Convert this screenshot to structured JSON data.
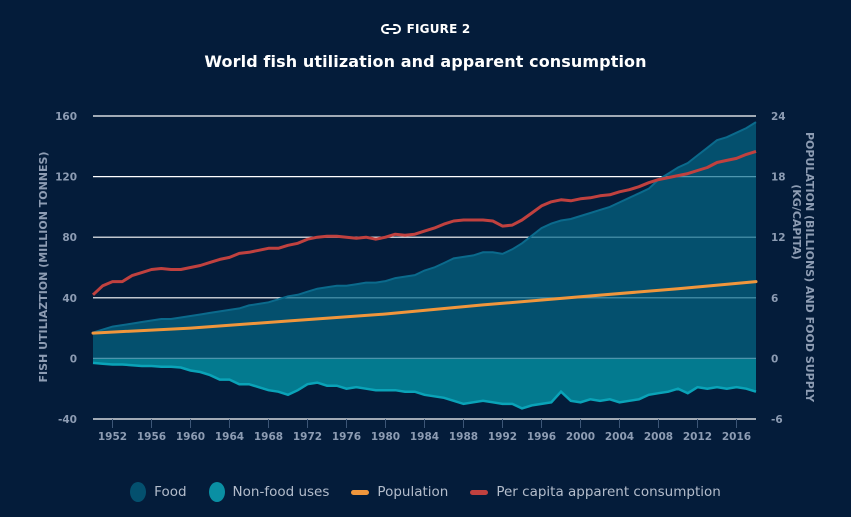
{
  "header": {
    "figure_icon": "link-icon",
    "figure_label": "FIGURE 2",
    "title": "World fish utilization and apparent consumption"
  },
  "colors": {
    "background": "#041c3a",
    "food": "#04506e",
    "food_edge": "#0b6a8c",
    "nonfood": "#037a8f",
    "nonfood_edge": "#0aa3b8",
    "population": "#f0963c",
    "per_capita": "#c0413f",
    "grid": "#ffffff",
    "grid_inside": "#4f97b0",
    "tick_text": "#8d9cb3"
  },
  "chart_data": {
    "type": "area",
    "title": "World fish utilization and apparent consumption",
    "xlabel": "",
    "ylabel": "FISH UTILIAZTION (MILLION TONNES)",
    "y2label_line1": "POPULATION (BILLIONS) AND FOOD SUPPLY",
    "y2label_line2": "(KG/CAPITA)",
    "xlim": [
      1950,
      2018
    ],
    "ylim": [
      -40,
      160
    ],
    "y2lim": [
      -6,
      24
    ],
    "yticks": [
      160,
      120,
      80,
      40,
      0,
      -40
    ],
    "y2ticks": [
      24,
      18,
      12,
      6,
      0,
      -6
    ],
    "xticks": [
      1952,
      1956,
      1960,
      1964,
      1968,
      1972,
      1976,
      1980,
      1984,
      1988,
      1992,
      1996,
      2000,
      2004,
      2008,
      2012,
      2016
    ],
    "grid": true,
    "legend_position": "bottom",
    "series": [
      {
        "name": "Food",
        "kind": "area",
        "axis": "left",
        "x": [
          1950,
          1951,
          1952,
          1953,
          1954,
          1955,
          1956,
          1957,
          1958,
          1959,
          1960,
          1961,
          1962,
          1963,
          1964,
          1965,
          1966,
          1967,
          1968,
          1969,
          1970,
          1971,
          1972,
          1973,
          1974,
          1975,
          1976,
          1977,
          1978,
          1979,
          1980,
          1981,
          1982,
          1983,
          1984,
          1985,
          1986,
          1987,
          1988,
          1989,
          1990,
          1991,
          1992,
          1993,
          1994,
          1995,
          1996,
          1997,
          1998,
          1999,
          2000,
          2001,
          2002,
          2003,
          2004,
          2005,
          2006,
          2007,
          2008,
          2009,
          2010,
          2011,
          2012,
          2013,
          2014,
          2015,
          2016,
          2017,
          2018
        ],
        "values": [
          17,
          19,
          21,
          22,
          23,
          24,
          25,
          26,
          26,
          27,
          28,
          29,
          30,
          31,
          32,
          33,
          35,
          36,
          37,
          39,
          41,
          42,
          44,
          46,
          47,
          48,
          48,
          49,
          50,
          50,
          51,
          53,
          54,
          55,
          58,
          60,
          63,
          66,
          67,
          68,
          70,
          70,
          69,
          72,
          76,
          81,
          86,
          89,
          91,
          92,
          94,
          96,
          98,
          100,
          103,
          106,
          109,
          112,
          118,
          122,
          126,
          129,
          134,
          139,
          144,
          146,
          149,
          152,
          156
        ]
      },
      {
        "name": "Non-food uses",
        "kind": "area",
        "axis": "left",
        "x": [
          1950,
          1951,
          1952,
          1953,
          1954,
          1955,
          1956,
          1957,
          1958,
          1959,
          1960,
          1961,
          1962,
          1963,
          1964,
          1965,
          1966,
          1967,
          1968,
          1969,
          1970,
          1971,
          1972,
          1973,
          1974,
          1975,
          1976,
          1977,
          1978,
          1979,
          1980,
          1981,
          1982,
          1983,
          1984,
          1985,
          1986,
          1987,
          1988,
          1989,
          1990,
          1991,
          1992,
          1993,
          1994,
          1995,
          1996,
          1997,
          1998,
          1999,
          2000,
          2001,
          2002,
          2003,
          2004,
          2005,
          2006,
          2007,
          2008,
          2009,
          2010,
          2011,
          2012,
          2013,
          2014,
          2015,
          2016,
          2017,
          2018
        ],
        "values": [
          -3,
          -3.5,
          -4,
          -4,
          -4.5,
          -5,
          -5,
          -5.5,
          -5.5,
          -6,
          -8,
          -9,
          -11,
          -14,
          -14,
          -17,
          -17,
          -19,
          -21,
          -22,
          -24,
          -21,
          -17,
          -16,
          -18,
          -18,
          -20,
          -19,
          -20,
          -21,
          -21,
          -21,
          -22,
          -22,
          -24,
          -25,
          -26,
          -28,
          -30,
          -29,
          -28,
          -29,
          -30,
          -30,
          -33,
          -31,
          -30,
          -29,
          -22,
          -28,
          -29,
          -27,
          -28,
          -27,
          -29,
          -28,
          -27,
          -24,
          -23,
          -22,
          -20,
          -23,
          -19,
          -20,
          -19,
          -20,
          -19,
          -20,
          -22
        ]
      },
      {
        "name": "Population",
        "kind": "line",
        "axis": "right",
        "unit": "billions",
        "x": [
          1950,
          1960,
          1970,
          1980,
          1990,
          2000,
          2010,
          2018
        ],
        "values": [
          2.5,
          3.0,
          3.7,
          4.4,
          5.3,
          6.1,
          6.9,
          7.6
        ]
      },
      {
        "name": "Per capita apparent consumption",
        "kind": "line",
        "axis": "right",
        "unit": "kg/capita",
        "x": [
          1950,
          1951,
          1952,
          1953,
          1954,
          1955,
          1956,
          1957,
          1958,
          1959,
          1960,
          1961,
          1962,
          1963,
          1964,
          1965,
          1966,
          1967,
          1968,
          1969,
          1970,
          1971,
          1972,
          1973,
          1974,
          1975,
          1976,
          1977,
          1978,
          1979,
          1980,
          1981,
          1982,
          1983,
          1984,
          1985,
          1986,
          1987,
          1988,
          1989,
          1990,
          1991,
          1992,
          1993,
          1994,
          1995,
          1996,
          1997,
          1998,
          1999,
          2000,
          2001,
          2002,
          2003,
          2004,
          2005,
          2006,
          2007,
          2008,
          2009,
          2010,
          2011,
          2012,
          2013,
          2014,
          2015,
          2016,
          2017,
          2018
        ],
        "values": [
          6.3,
          7.2,
          7.6,
          7.6,
          8.2,
          8.5,
          8.8,
          8.9,
          8.8,
          8.8,
          9.0,
          9.2,
          9.5,
          9.8,
          10.0,
          10.4,
          10.5,
          10.7,
          10.9,
          10.9,
          11.2,
          11.4,
          11.8,
          12.0,
          12.1,
          12.1,
          12.0,
          11.9,
          12.0,
          11.8,
          12.0,
          12.3,
          12.2,
          12.3,
          12.6,
          12.9,
          13.3,
          13.6,
          13.7,
          13.7,
          13.7,
          13.6,
          13.1,
          13.2,
          13.7,
          14.4,
          15.1,
          15.5,
          15.7,
          15.6,
          15.8,
          15.9,
          16.1,
          16.2,
          16.5,
          16.7,
          17.0,
          17.4,
          17.7,
          17.9,
          18.1,
          18.3,
          18.6,
          18.9,
          19.4,
          19.6,
          19.8,
          20.2,
          20.5
        ]
      }
    ]
  },
  "legend": [
    {
      "label": "Food",
      "kind": "dot",
      "color_key": "food"
    },
    {
      "label": "Non-food uses",
      "kind": "dot",
      "color_key": "nonfood"
    },
    {
      "label": "Population",
      "kind": "line",
      "color_key": "population"
    },
    {
      "label": "Per capita apparent consumption",
      "kind": "line",
      "color_key": "per_capita"
    }
  ]
}
